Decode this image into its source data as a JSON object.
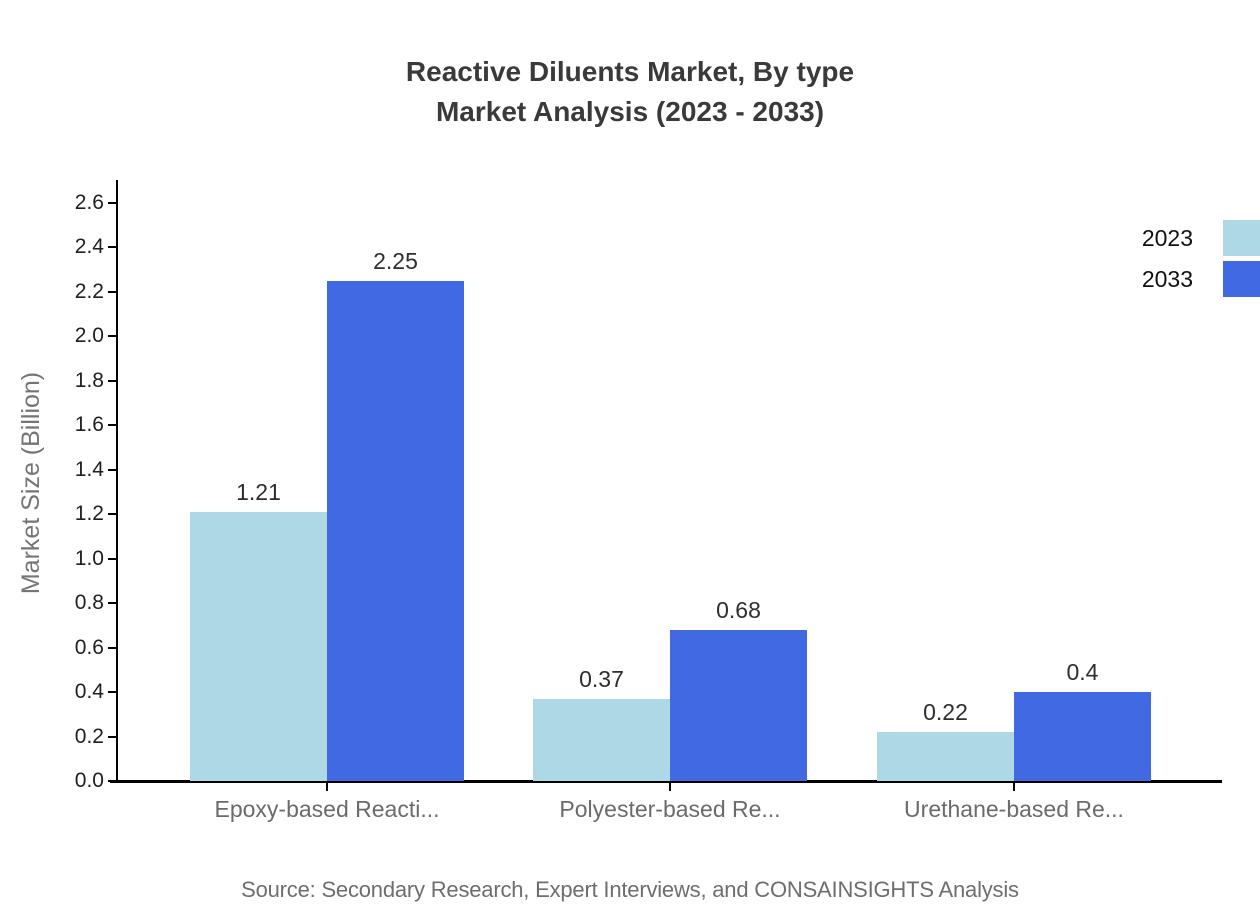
{
  "title": {
    "line1": "Reactive Diluents Market, By type",
    "line2": "Market Analysis (2023 - 2033)"
  },
  "chart_data": {
    "type": "bar",
    "categories": [
      "Epoxy-based Reacti...",
      "Polyester-based Re...",
      "Urethane-based Re..."
    ],
    "series": [
      {
        "name": "2023",
        "color": "#ADD8E6",
        "values": [
          1.21,
          0.37,
          0.22
        ]
      },
      {
        "name": "2033",
        "color": "#4169E1",
        "values": [
          2.25,
          0.68,
          0.4
        ]
      }
    ],
    "title": "Reactive Diluents Market, By type Market Analysis (2023 - 2033)",
    "xlabel": "",
    "ylabel": "Market Size (Billion)",
    "ylim": [
      0,
      2.6
    ],
    "ytick_step": 0.2,
    "ytick_labels": [
      "0.0",
      "0.2",
      "0.4",
      "0.6",
      "0.8",
      "1.0",
      "1.2",
      "1.4",
      "1.6",
      "1.8",
      "2.0",
      "2.2",
      "2.4",
      "2.6"
    ],
    "grid": false,
    "legend_position": "top-right",
    "bar_value_labels": [
      "1.21",
      "2.25",
      "0.37",
      "0.68",
      "0.22",
      "0.4"
    ]
  },
  "legend": {
    "items": [
      {
        "label": "2023",
        "color": "#ADD8E6"
      },
      {
        "label": "2033",
        "color": "#4169E1"
      }
    ]
  },
  "source": {
    "text": "Source: Secondary Research, Expert Interviews, and CONSAINSIGHTS Analysis"
  },
  "colors": {
    "series_2023": "#ADD8E6",
    "series_2033": "#4169E1",
    "axis": "#000000",
    "title_text": "#3a3a3a",
    "category_text": "#6b6b6b",
    "value_text": "#2e2e2e",
    "ylabel_text": "#757575",
    "source_text": "#6e6e6e"
  }
}
